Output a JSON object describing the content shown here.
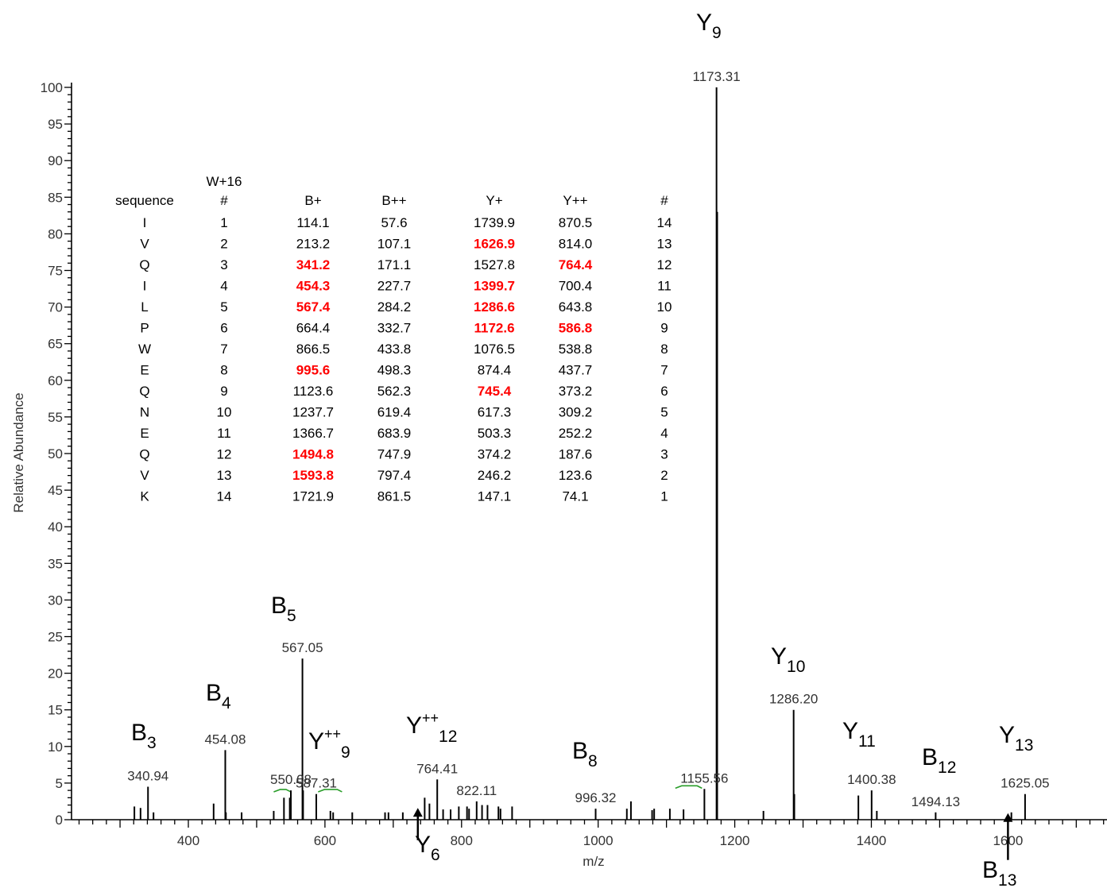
{
  "chart_data": {
    "type": "bar",
    "xlabel": "m/z",
    "ylabel": "Relative Abundance",
    "xlim": [
      215,
      1745
    ],
    "ylim": [
      0,
      100
    ],
    "x_ticks": [
      400,
      600,
      800,
      1000,
      1200,
      1400,
      1600
    ],
    "y_ticks": [
      0,
      5,
      10,
      15,
      20,
      25,
      30,
      35,
      40,
      45,
      50,
      55,
      60,
      65,
      70,
      75,
      80,
      85,
      90,
      95,
      100
    ],
    "peaks": [
      {
        "mz": 1173.31,
        "intensity": 100,
        "label": "1173.31"
      },
      {
        "mz": 1174.3,
        "intensity": 83
      },
      {
        "mz": 567.05,
        "intensity": 22,
        "label": "567.05"
      },
      {
        "mz": 568.0,
        "intensity": 4
      },
      {
        "mz": 1286.2,
        "intensity": 15,
        "label": "1286.20"
      },
      {
        "mz": 1287.2,
        "intensity": 3.5
      },
      {
        "mz": 454.08,
        "intensity": 9.5,
        "label": "454.08"
      },
      {
        "mz": 455.0,
        "intensity": 1
      },
      {
        "mz": 340.94,
        "intensity": 4.5,
        "label": "340.94"
      },
      {
        "mz": 764.41,
        "intensity": 5.5,
        "label": "764.41"
      },
      {
        "mz": 1400.38,
        "intensity": 4,
        "label": "1400.38"
      },
      {
        "mz": 1381.0,
        "intensity": 3.3
      },
      {
        "mz": 1625.05,
        "intensity": 3.5,
        "label": "1625.05"
      },
      {
        "mz": 1155.56,
        "intensity": 4.2,
        "label": "1155.56"
      },
      {
        "mz": 996.32,
        "intensity": 1.5,
        "label": "996.32"
      },
      {
        "mz": 1494.13,
        "intensity": 1,
        "label": "1494.13"
      },
      {
        "mz": 822.11,
        "intensity": 2.5,
        "label": "822.11"
      },
      {
        "mz": 550.08,
        "intensity": 4,
        "label": "550.08"
      },
      {
        "mz": 548.5,
        "intensity": 3
      },
      {
        "mz": 587.31,
        "intensity": 3.5,
        "label": "587.31"
      },
      {
        "mz": 321,
        "intensity": 1.8
      },
      {
        "mz": 330,
        "intensity": 1.6
      },
      {
        "mz": 349,
        "intensity": 1
      },
      {
        "mz": 437,
        "intensity": 2.2
      },
      {
        "mz": 478,
        "intensity": 1
      },
      {
        "mz": 525,
        "intensity": 1.2
      },
      {
        "mz": 540,
        "intensity": 3
      },
      {
        "mz": 608,
        "intensity": 1.2
      },
      {
        "mz": 612,
        "intensity": 1
      },
      {
        "mz": 640,
        "intensity": 1
      },
      {
        "mz": 688,
        "intensity": 1
      },
      {
        "mz": 693,
        "intensity": 1
      },
      {
        "mz": 714,
        "intensity": 1
      },
      {
        "mz": 746,
        "intensity": 3
      },
      {
        "mz": 753,
        "intensity": 2.2
      },
      {
        "mz": 773,
        "intensity": 1.4
      },
      {
        "mz": 784,
        "intensity": 1.4
      },
      {
        "mz": 796,
        "intensity": 1.8
      },
      {
        "mz": 808,
        "intensity": 1.8
      },
      {
        "mz": 811,
        "intensity": 1.5
      },
      {
        "mz": 830,
        "intensity": 2
      },
      {
        "mz": 838,
        "intensity": 2
      },
      {
        "mz": 854,
        "intensity": 1.8
      },
      {
        "mz": 857,
        "intensity": 1.5
      },
      {
        "mz": 874,
        "intensity": 1.8
      },
      {
        "mz": 1042,
        "intensity": 1.5
      },
      {
        "mz": 1048,
        "intensity": 2.5
      },
      {
        "mz": 1079,
        "intensity": 1.3
      },
      {
        "mz": 1082,
        "intensity": 1.5
      },
      {
        "mz": 1105,
        "intensity": 1.5
      },
      {
        "mz": 1125,
        "intensity": 1.4
      },
      {
        "mz": 1242,
        "intensity": 1.2
      },
      {
        "mz": 1408,
        "intensity": 1.2
      },
      {
        "mz": 1605,
        "intensity": 1
      }
    ],
    "green_markers": [
      {
        "mz1": 525,
        "mz2": 550,
        "intensity": 3.8
      },
      {
        "mz1": 590,
        "mz2": 625,
        "intensity": 3.8
      },
      {
        "mz1": 1113,
        "mz2": 1152,
        "intensity": 4.3
      }
    ],
    "annotations": [
      {
        "base": "B",
        "sup": "",
        "sub": "3",
        "x": 165,
        "y": 932
      },
      {
        "base": "B",
        "sup": "",
        "sub": "4",
        "x": 259,
        "y": 882
      },
      {
        "base": "B",
        "sup": "",
        "sub": "5",
        "x": 341,
        "y": 772
      },
      {
        "base": "Y",
        "sup": "++",
        "sub": "9",
        "x": 388,
        "y": 943
      },
      {
        "base": "Y",
        "sup": "++",
        "sub": "12",
        "x": 511,
        "y": 923
      },
      {
        "base": "Y",
        "sup": "",
        "sub": "6",
        "x": 522,
        "y": 1073
      },
      {
        "base": "B",
        "sup": "",
        "sub": "8",
        "x": 720,
        "y": 955
      },
      {
        "base": "Y",
        "sup": "",
        "sub": "9",
        "x": 876,
        "y": 38
      },
      {
        "base": "Y",
        "sup": "",
        "sub": "10",
        "x": 970,
        "y": 836
      },
      {
        "base": "Y",
        "sup": "",
        "sub": "11",
        "x": 1060,
        "y": 930
      },
      {
        "base": "B",
        "sup": "",
        "sub": "12",
        "x": 1160,
        "y": 963
      },
      {
        "base": "Y",
        "sup": "",
        "sub": "13",
        "x": 1257,
        "y": 935
      },
      {
        "base": "B",
        "sup": "",
        "sub": "13",
        "x": 1236,
        "y": 1105
      }
    ],
    "arrows": [
      {
        "mz": 736,
        "from_intensity": -2.8,
        "to_intensity": 1.6
      },
      {
        "mz": 1600,
        "from_intensity": -5.5,
        "to_intensity": 0.9
      }
    ],
    "table": {
      "header_top": "W+16",
      "headers": [
        "sequence",
        "#",
        "B+",
        "B++",
        "Y+",
        "Y++",
        "#"
      ],
      "rows": [
        [
          "I",
          "1",
          "114.1",
          "57.6",
          "1739.9",
          "870.5",
          "14"
        ],
        [
          "V",
          "2",
          "213.2",
          "107.1",
          "1626.9",
          "814.0",
          "13"
        ],
        [
          "Q",
          "3",
          "341.2",
          "171.1",
          "1527.8",
          "764.4",
          "12"
        ],
        [
          "I",
          "4",
          "454.3",
          "227.7",
          "1399.7",
          "700.4",
          "11"
        ],
        [
          "L",
          "5",
          "567.4",
          "284.2",
          "1286.6",
          "643.8",
          "10"
        ],
        [
          "P",
          "6",
          "664.4",
          "332.7",
          "1172.6",
          "586.8",
          "9"
        ],
        [
          "W",
          "7",
          "866.5",
          "433.8",
          "1076.5",
          "538.8",
          "8"
        ],
        [
          "E",
          "8",
          "995.6",
          "498.3",
          "874.4",
          "437.7",
          "7"
        ],
        [
          "Q",
          "9",
          "1123.6",
          "562.3",
          "745.4",
          "373.2",
          "6"
        ],
        [
          "N",
          "10",
          "1237.7",
          "619.4",
          "617.3",
          "309.2",
          "5"
        ],
        [
          "E",
          "11",
          "1366.7",
          "683.9",
          "503.3",
          "252.2",
          "4"
        ],
        [
          "Q",
          "12",
          "1494.8",
          "747.9",
          "374.2",
          "187.6",
          "3"
        ],
        [
          "V",
          "13",
          "1593.8",
          "797.4",
          "246.2",
          "123.6",
          "2"
        ],
        [
          "K",
          "14",
          "1721.9",
          "861.5",
          "147.1",
          "74.1",
          "1"
        ]
      ],
      "highlighted": [
        [
          1,
          4
        ],
        [
          2,
          2
        ],
        [
          2,
          5
        ],
        [
          3,
          2
        ],
        [
          3,
          4
        ],
        [
          4,
          2
        ],
        [
          4,
          4
        ],
        [
          5,
          4
        ],
        [
          5,
          5
        ],
        [
          7,
          2
        ],
        [
          8,
          4
        ],
        [
          11,
          2
        ],
        [
          12,
          2
        ]
      ],
      "highlight_color": "#ff0000"
    }
  }
}
